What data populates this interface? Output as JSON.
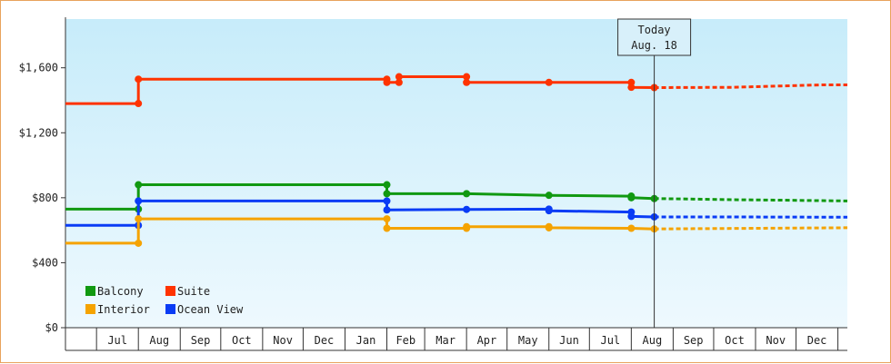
{
  "colors": {
    "frame_border": "#e8a35c",
    "plot_bg_top": "#c7ecfa",
    "plot_bg_bottom": "#eef9fe",
    "balcony": "#119911",
    "suite": "#ff3300",
    "interior": "#f5a300",
    "ocean_view": "#0a3cf5"
  },
  "today_label": {
    "line1": "Today",
    "line2": "Aug. 18",
    "date": "2014-08-18"
  },
  "chart_data": {
    "type": "line",
    "title": "",
    "xlabel": "",
    "ylabel": "",
    "x_ticks": [
      "Jul",
      "Aug",
      "Sep",
      "Oct",
      "Nov",
      "Dec",
      "Jan",
      "Feb",
      "Mar",
      "Apr",
      "May",
      "Jun",
      "Jul",
      "Aug",
      "Sep",
      "Oct",
      "Nov",
      "Dec"
    ],
    "y_ticks": [
      "$0",
      "$400",
      "$800",
      "$1,200",
      "$1,600"
    ],
    "ylim": [
      0,
      1900
    ],
    "xlim": [
      "2013-06-08",
      "2015-01-08"
    ],
    "grid": false,
    "legend_position": "bottom-left",
    "legend_order": [
      "Balcony",
      "Suite",
      "Interior",
      "Ocean View"
    ],
    "series": [
      {
        "name": "Suite",
        "color_key": "suite",
        "points": [
          {
            "date": "2013-06-08",
            "value": 1380
          },
          {
            "date": "2013-08-01",
            "value": 1380
          },
          {
            "date": "2013-08-01",
            "value": 1530
          },
          {
            "date": "2014-02-01",
            "value": 1530
          },
          {
            "date": "2014-02-01",
            "value": 1510
          },
          {
            "date": "2014-02-10",
            "value": 1510
          },
          {
            "date": "2014-02-10",
            "value": 1545
          },
          {
            "date": "2014-04-01",
            "value": 1545
          },
          {
            "date": "2014-04-01",
            "value": 1510
          },
          {
            "date": "2014-06-01",
            "value": 1510
          },
          {
            "date": "2014-08-01",
            "value": 1510
          },
          {
            "date": "2014-08-01",
            "value": 1480
          },
          {
            "date": "2014-08-18",
            "value": 1478
          }
        ],
        "forecast": [
          {
            "date": "2014-08-18",
            "value": 1478
          },
          {
            "date": "2014-10-15",
            "value": 1480
          },
          {
            "date": "2014-11-20",
            "value": 1488
          },
          {
            "date": "2014-12-20",
            "value": 1495
          },
          {
            "date": "2015-01-08",
            "value": 1495
          }
        ]
      },
      {
        "name": "Balcony",
        "color_key": "balcony",
        "points": [
          {
            "date": "2013-06-08",
            "value": 730
          },
          {
            "date": "2013-08-01",
            "value": 730
          },
          {
            "date": "2013-08-01",
            "value": 880
          },
          {
            "date": "2014-02-01",
            "value": 880
          },
          {
            "date": "2014-02-01",
            "value": 825
          },
          {
            "date": "2014-04-01",
            "value": 825
          },
          {
            "date": "2014-06-01",
            "value": 815
          },
          {
            "date": "2014-08-01",
            "value": 810
          },
          {
            "date": "2014-08-01",
            "value": 800
          },
          {
            "date": "2014-08-18",
            "value": 795
          }
        ],
        "forecast": [
          {
            "date": "2014-08-18",
            "value": 795
          },
          {
            "date": "2014-10-15",
            "value": 788
          },
          {
            "date": "2014-11-20",
            "value": 785
          },
          {
            "date": "2015-01-08",
            "value": 780
          }
        ]
      },
      {
        "name": "Ocean View",
        "color_key": "ocean_view",
        "points": [
          {
            "date": "2013-06-08",
            "value": 630
          },
          {
            "date": "2013-08-01",
            "value": 630
          },
          {
            "date": "2013-08-01",
            "value": 780
          },
          {
            "date": "2014-02-01",
            "value": 780
          },
          {
            "date": "2014-02-01",
            "value": 725
          },
          {
            "date": "2014-04-01",
            "value": 728
          },
          {
            "date": "2014-06-01",
            "value": 730
          },
          {
            "date": "2014-06-01",
            "value": 720
          },
          {
            "date": "2014-08-01",
            "value": 712
          },
          {
            "date": "2014-08-01",
            "value": 685
          },
          {
            "date": "2014-08-18",
            "value": 682
          }
        ],
        "forecast": [
          {
            "date": "2014-08-18",
            "value": 682
          },
          {
            "date": "2014-10-15",
            "value": 682
          },
          {
            "date": "2015-01-08",
            "value": 680
          }
        ]
      },
      {
        "name": "Interior",
        "color_key": "interior",
        "points": [
          {
            "date": "2013-06-08",
            "value": 520
          },
          {
            "date": "2013-08-01",
            "value": 520
          },
          {
            "date": "2013-08-01",
            "value": 670
          },
          {
            "date": "2014-02-01",
            "value": 670
          },
          {
            "date": "2014-02-01",
            "value": 612
          },
          {
            "date": "2014-04-01",
            "value": 612
          },
          {
            "date": "2014-04-01",
            "value": 622
          },
          {
            "date": "2014-06-01",
            "value": 622
          },
          {
            "date": "2014-06-01",
            "value": 615
          },
          {
            "date": "2014-08-01",
            "value": 612
          },
          {
            "date": "2014-08-18",
            "value": 608
          }
        ],
        "forecast": [
          {
            "date": "2014-08-18",
            "value": 608
          },
          {
            "date": "2014-11-01",
            "value": 612
          },
          {
            "date": "2015-01-08",
            "value": 615
          }
        ]
      }
    ]
  }
}
